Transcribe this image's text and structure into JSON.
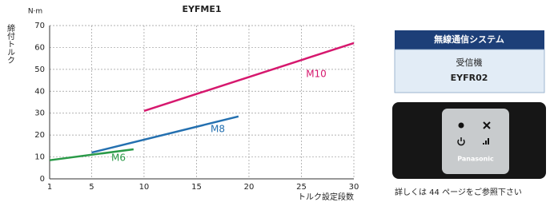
{
  "chart_data": {
    "type": "line",
    "title": "EYFME1",
    "y_label": "締付トルク",
    "y_unit": "N·m",
    "x_label": "トルク設定段数",
    "xlim": [
      1,
      30
    ],
    "xticks": [
      1,
      5,
      10,
      15,
      20,
      25,
      30
    ],
    "ylim": [
      0,
      70
    ],
    "yticks": [
      0,
      10,
      20,
      30,
      40,
      50,
      60,
      70
    ],
    "grid": true,
    "series": [
      {
        "name": "M6",
        "color": "#2a9a48",
        "x": [
          1,
          9
        ],
        "values": [
          8.5,
          13.5
        ]
      },
      {
        "name": "M8",
        "color": "#2470b0",
        "x": [
          5,
          19
        ],
        "values": [
          12,
          28.5
        ]
      },
      {
        "name": "M10",
        "color": "#d6186e",
        "x": [
          10,
          30
        ],
        "values": [
          31,
          62
        ]
      }
    ]
  },
  "panel": {
    "header": "無線通信システム",
    "label": "受信機",
    "model": "EYFR02",
    "product_brand": "Panasonic",
    "caption": "詳しくは 44 ページをご参照下さい"
  }
}
